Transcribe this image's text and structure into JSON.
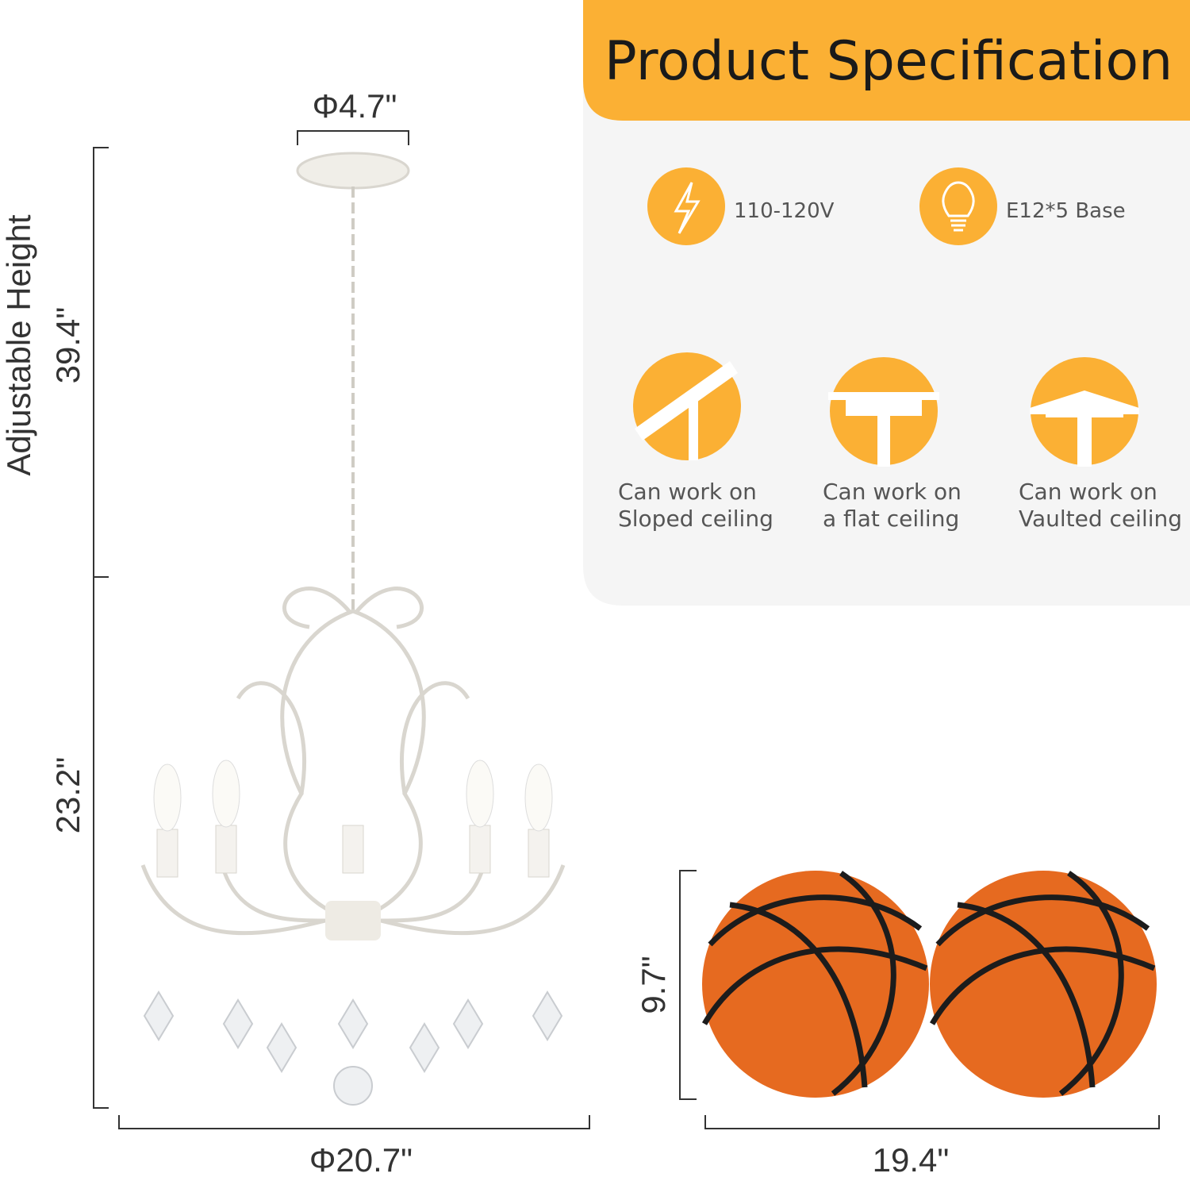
{
  "dimensions": {
    "canopy_diameter": "Φ4.7\"",
    "adjustable_height_label": "Adjustable Height",
    "adjustable_height": "39.4\"",
    "body_height": "23.2\"",
    "body_diameter": "Φ20.7\""
  },
  "spec_panel": {
    "title": "Product Specification",
    "features": [
      {
        "label": "110-120V"
      },
      {
        "label": "E12*5 Base"
      }
    ],
    "ceilings": [
      {
        "lines": [
          "Can work on",
          "Sloped ceiling"
        ]
      },
      {
        "lines": [
          "Can work on",
          "a flat ceiling"
        ]
      },
      {
        "lines": [
          "Can work on",
          "Vaulted ceiling"
        ]
      }
    ]
  },
  "comparison": {
    "height": "9.7\"",
    "width": "19.4\""
  }
}
